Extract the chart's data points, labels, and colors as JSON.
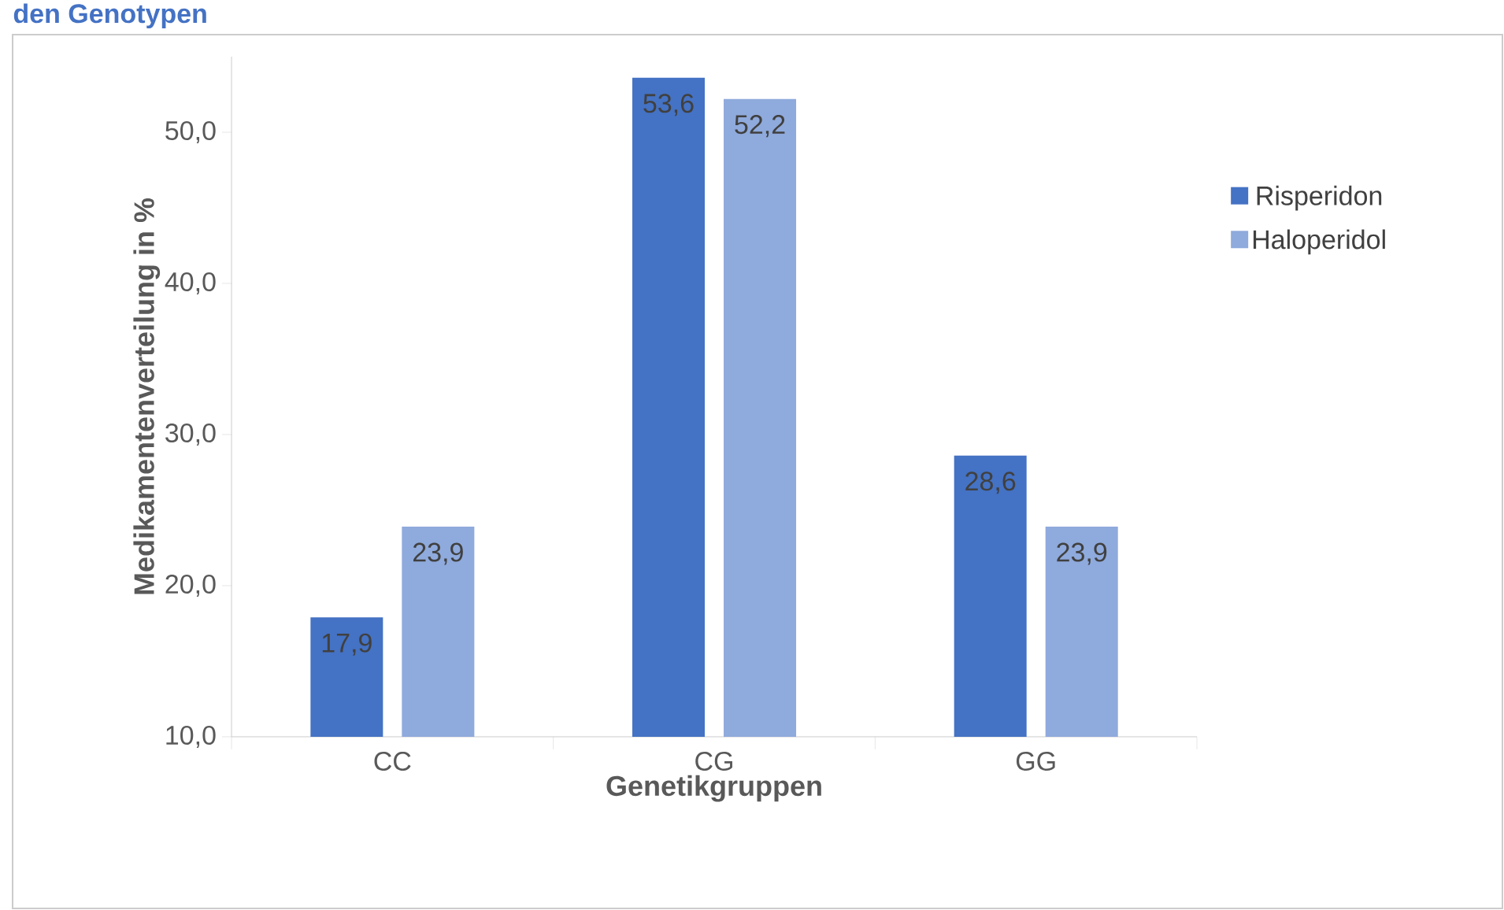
{
  "chart_data": {
    "type": "bar",
    "title": "den Genotypen",
    "xlabel": "Genetikgruppen",
    "ylabel": "Medikamentenverteilung in %",
    "categories": [
      "CC",
      "CG",
      "GG"
    ],
    "series": [
      {
        "name": "Risperidon",
        "color": "#4472c4",
        "values": [
          17.9,
          53.6,
          28.6
        ],
        "value_labels": [
          "17,9",
          "53,6",
          "28,6"
        ]
      },
      {
        "name": "Haloperidol",
        "color": "#8faadc",
        "values": [
          23.9,
          52.2,
          23.9
        ],
        "value_labels": [
          "23,9",
          "52,2",
          "23,9"
        ]
      }
    ],
    "ylim": [
      10,
      55
    ],
    "yticks": [
      {
        "value": 10,
        "label": "10,0"
      },
      {
        "value": 20,
        "label": "20,0"
      },
      {
        "value": 30,
        "label": "30,0"
      },
      {
        "value": 40,
        "label": "40,0"
      },
      {
        "value": 50,
        "label": "50,0"
      }
    ],
    "grid": false,
    "legend": "right"
  }
}
